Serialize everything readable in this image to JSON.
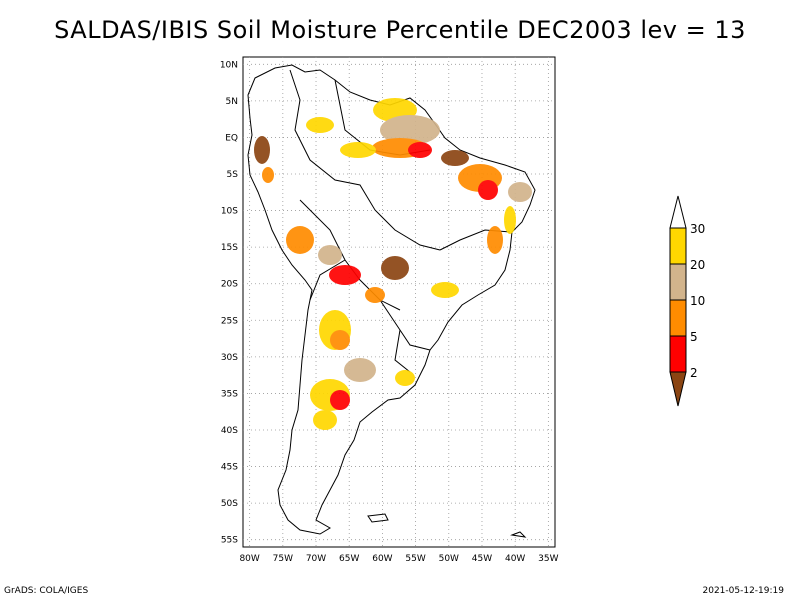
{
  "title": "SALDAS/IBIS Soil Moisture Percentile DEC2003 lev = 13",
  "axes": {
    "lat_labels": [
      "10N",
      "5N",
      "EQ",
      "5S",
      "10S",
      "15S",
      "20S",
      "25S",
      "30S",
      "35S",
      "40S",
      "45S",
      "50S",
      "55S"
    ],
    "lat_values": [
      10,
      5,
      0,
      -5,
      -10,
      -15,
      -20,
      -25,
      -30,
      -35,
      -40,
      -45,
      -50,
      -55
    ],
    "lon_labels": [
      "80W",
      "75W",
      "70W",
      "65W",
      "60W",
      "55W",
      "50W",
      "45W",
      "40W",
      "35W"
    ],
    "lon_values": [
      -80,
      -75,
      -70,
      -65,
      -60,
      -55,
      -50,
      -45,
      -40,
      -35
    ],
    "lon_range": [
      -81,
      -34
    ],
    "lat_range": [
      -56,
      11
    ],
    "grid": "dotted"
  },
  "legend": {
    "labels": [
      "30",
      "20",
      "10",
      "5",
      "2"
    ],
    "colors": {
      "above_30": "#ffffff",
      "20_30": "#ffd700",
      "10_20": "#d2b48c",
      "5_10": "#ff8c00",
      "2_5": "#ff0000",
      "below_2": "#8b4513"
    }
  },
  "footer": {
    "left": "GrADS: COLA/IGES",
    "right": "2021-05-12-19:19"
  }
}
